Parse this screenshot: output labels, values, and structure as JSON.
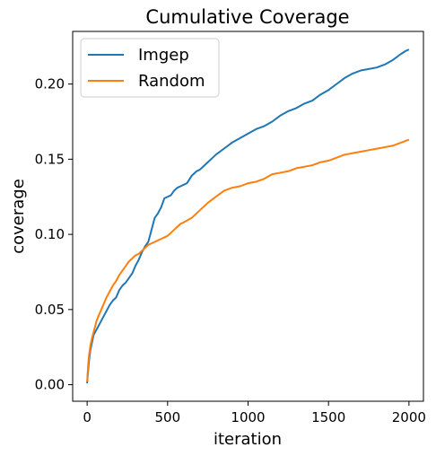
{
  "chart_data": {
    "type": "line",
    "title": "Cumulative Coverage",
    "xlabel": "iteration",
    "ylabel": "coverage",
    "xlim": [
      -90,
      2090
    ],
    "ylim": [
      -0.011,
      0.235
    ],
    "xticks": [
      0,
      500,
      1000,
      1500,
      2000
    ],
    "xtick_labels": [
      "0",
      "500",
      "1000",
      "1500",
      "2000"
    ],
    "yticks": [
      0.0,
      0.05,
      0.1,
      0.15,
      0.2
    ],
    "ytick_labels": [
      "0.00",
      "0.05",
      "0.10",
      "0.15",
      "0.20"
    ],
    "grid": false,
    "legend_position": "top-left",
    "series": [
      {
        "name": "Imgep",
        "color": "#1f77b4",
        "x": [
          0,
          5,
          10,
          15,
          20,
          30,
          40,
          50,
          60,
          80,
          100,
          120,
          140,
          160,
          180,
          200,
          220,
          240,
          260,
          280,
          300,
          320,
          340,
          360,
          380,
          400,
          420,
          440,
          460,
          480,
          500,
          520,
          540,
          560,
          580,
          600,
          620,
          650,
          680,
          700,
          720,
          750,
          780,
          800,
          850,
          900,
          950,
          1000,
          1050,
          1100,
          1150,
          1200,
          1250,
          1300,
          1350,
          1400,
          1450,
          1500,
          1550,
          1600,
          1650,
          1700,
          1750,
          1800,
          1850,
          1900,
          1950,
          1980,
          2000
        ],
        "y": [
          0.001,
          0.008,
          0.014,
          0.019,
          0.023,
          0.028,
          0.033,
          0.035,
          0.037,
          0.041,
          0.045,
          0.049,
          0.053,
          0.056,
          0.058,
          0.063,
          0.066,
          0.068,
          0.071,
          0.074,
          0.079,
          0.083,
          0.088,
          0.092,
          0.095,
          0.103,
          0.111,
          0.114,
          0.118,
          0.124,
          0.125,
          0.126,
          0.129,
          0.131,
          0.132,
          0.133,
          0.134,
          0.139,
          0.142,
          0.143,
          0.145,
          0.148,
          0.151,
          0.153,
          0.157,
          0.161,
          0.164,
          0.167,
          0.17,
          0.172,
          0.175,
          0.179,
          0.182,
          0.184,
          0.187,
          0.189,
          0.193,
          0.196,
          0.2,
          0.204,
          0.207,
          0.209,
          0.21,
          0.211,
          0.213,
          0.216,
          0.22,
          0.222,
          0.223
        ]
      },
      {
        "name": "Random",
        "color": "#ff7f0e",
        "x": [
          0,
          5,
          10,
          15,
          20,
          30,
          40,
          50,
          60,
          80,
          100,
          120,
          140,
          160,
          180,
          200,
          220,
          240,
          260,
          280,
          300,
          320,
          340,
          360,
          380,
          400,
          420,
          440,
          460,
          480,
          500,
          520,
          540,
          560,
          580,
          600,
          650,
          700,
          750,
          800,
          850,
          900,
          950,
          1000,
          1050,
          1100,
          1150,
          1200,
          1250,
          1300,
          1350,
          1400,
          1450,
          1500,
          1550,
          1600,
          1650,
          1700,
          1750,
          1800,
          1850,
          1900,
          1950,
          2000
        ],
        "y": [
          0.002,
          0.011,
          0.018,
          0.022,
          0.026,
          0.031,
          0.035,
          0.039,
          0.043,
          0.048,
          0.053,
          0.058,
          0.062,
          0.066,
          0.069,
          0.073,
          0.076,
          0.079,
          0.082,
          0.084,
          0.086,
          0.087,
          0.089,
          0.091,
          0.093,
          0.094,
          0.095,
          0.096,
          0.097,
          0.098,
          0.099,
          0.101,
          0.103,
          0.105,
          0.107,
          0.108,
          0.111,
          0.116,
          0.121,
          0.125,
          0.129,
          0.131,
          0.132,
          0.134,
          0.135,
          0.137,
          0.14,
          0.141,
          0.142,
          0.144,
          0.145,
          0.146,
          0.148,
          0.149,
          0.151,
          0.153,
          0.154,
          0.155,
          0.156,
          0.157,
          0.158,
          0.159,
          0.161,
          0.163
        ]
      }
    ]
  }
}
